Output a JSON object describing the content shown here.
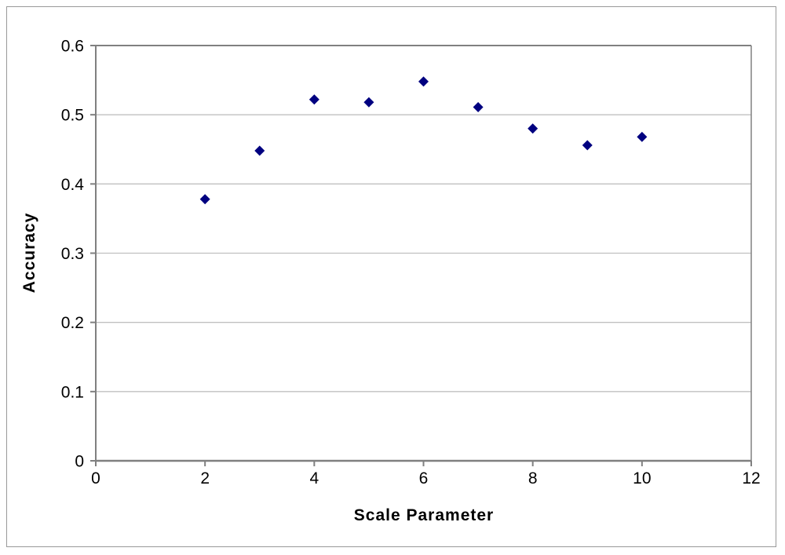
{
  "chart_data": {
    "type": "scatter",
    "title": "",
    "xlabel": "Scale Parameter",
    "ylabel": "Accuracy",
    "x": [
      2,
      3,
      4,
      5,
      6,
      7,
      8,
      9,
      10
    ],
    "y": [
      0.378,
      0.448,
      0.522,
      0.518,
      0.548,
      0.511,
      0.48,
      0.456,
      0.468
    ],
    "xlim": [
      0,
      12
    ],
    "ylim": [
      0,
      0.6
    ],
    "xticks": [
      0,
      2,
      4,
      6,
      8,
      10,
      12
    ],
    "xtick_labels": [
      "0",
      "2",
      "4",
      "6",
      "8",
      "10",
      "12"
    ],
    "yticks": [
      0,
      0.1,
      0.2,
      0.3,
      0.4,
      0.5,
      0.6
    ],
    "ytick_labels": [
      "0",
      "0.1",
      "0.2",
      "0.3",
      "0.4",
      "0.5",
      "0.6"
    ],
    "grid": "horizontal-major",
    "legend": "none",
    "marker": {
      "shape": "diamond",
      "color": "#000080",
      "size": 13
    },
    "colors": {
      "axis_line": "#808080",
      "plot_border": "#808080",
      "gridline": "#c0c0c0",
      "chart_border": "#999999",
      "background": "#ffffff",
      "text": "#000000"
    }
  }
}
